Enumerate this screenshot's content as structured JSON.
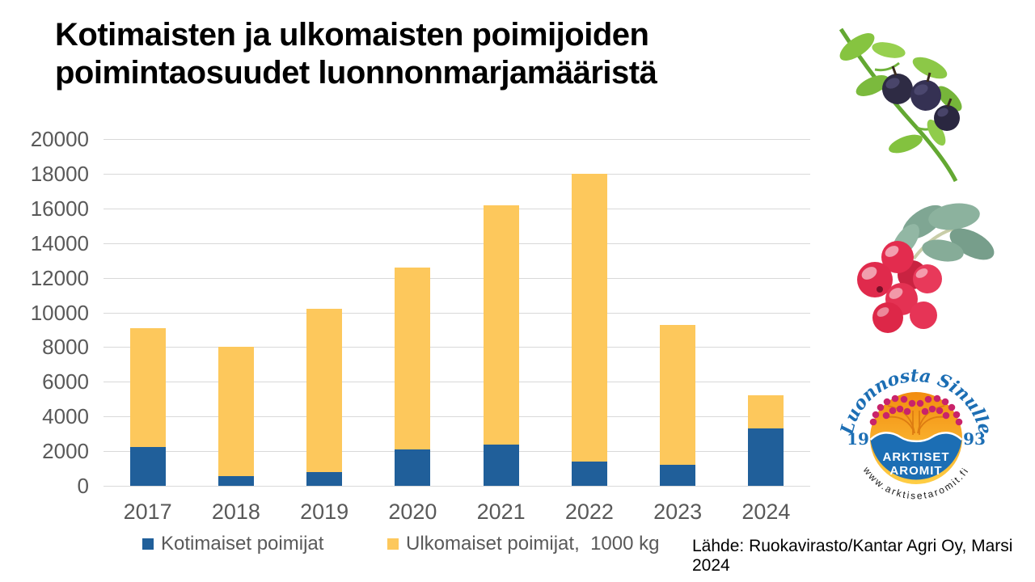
{
  "title": "Kotimaisten ja ulkomaisten poimijoiden\npoimintaosuudet luonnonmarjamääristä",
  "source": "Lähde: Ruokavirasto/Kantar Agri Oy, Marsi 2024",
  "legend": [
    {
      "label": "Kotimaiset poimijat",
      "color": "#205F9A"
    },
    {
      "label": "Ulkomaiset poimijat,  1000 kg",
      "color": "#FDC85C"
    }
  ],
  "chart_data": {
    "type": "bar",
    "stacked": true,
    "title": "Kotimaisten ja ulkomaisten poimijoiden poimintaosuudet luonnonmarjamääristä",
    "xlabel": "",
    "ylabel": "1000 kg",
    "categories": [
      "2017",
      "2018",
      "2019",
      "2020",
      "2021",
      "2022",
      "2023",
      "2024"
    ],
    "series": [
      {
        "name": "Kotimaiset poimijat",
        "color": "#205F9A",
        "values": [
          2250,
          550,
          800,
          2100,
          2400,
          1400,
          1200,
          3300
        ]
      },
      {
        "name": "Ulkomaiset poimijat, 1000 kg",
        "color": "#FDC85C",
        "values": [
          6850,
          7450,
          9400,
          10500,
          13800,
          16600,
          8100,
          1900
        ]
      }
    ],
    "totals": [
      9100,
      8000,
      10200,
      12600,
      16200,
      18000,
      9300,
      5200
    ],
    "ylim": [
      0,
      20000
    ],
    "ytick_step": 2000,
    "grid": true,
    "legend_position": "bottom"
  },
  "colors": {
    "bar_blue": "#205F9A",
    "bar_yellow": "#FDC85C",
    "gridline": "#D9D9D9",
    "axis_text": "#595959",
    "logo_blue": "#1C6EB4",
    "logo_berry": "#C9236A"
  },
  "logo": {
    "top_text": "Luonnosta Sinulle",
    "year_left": "19",
    "year_right": "93",
    "line1": "ARKTISET",
    "line2": "AROMIT",
    "bottom_text": "www.arktisetaromit.fi"
  }
}
